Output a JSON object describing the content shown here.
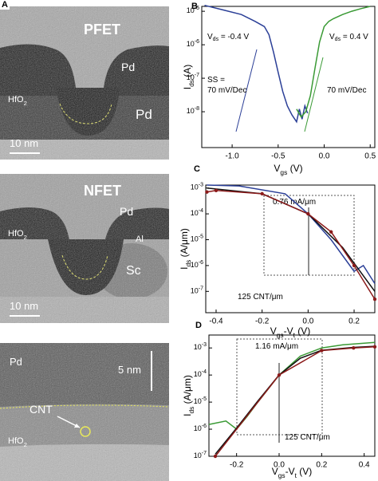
{
  "figure_label": "A",
  "images": [
    {
      "labels": [
        [
          "PFET"
        ],
        [
          "Pd"
        ],
        [
          "Pd"
        ],
        [
          "HfO",
          "2"
        ],
        [
          "10 nm"
        ]
      ]
    },
    {
      "labels": [
        [
          "NFET"
        ],
        [
          "Pd"
        ],
        [
          "HfO",
          "2"
        ],
        [
          "Al"
        ],
        [
          "Sc"
        ],
        [
          "10 nm"
        ]
      ]
    },
    {
      "labels": [
        [
          "Pd"
        ],
        [
          "5 nm"
        ],
        [
          "CNT"
        ],
        [
          "HfO",
          "2"
        ]
      ]
    }
  ],
  "chart_data": [
    {
      "type": "line",
      "panel": "B",
      "log_y": true,
      "xlabel": [
        "V",
        "gs",
        " (V)"
      ],
      "ylabel": [
        "I",
        "ds",
        " (A)"
      ],
      "xlim": [
        -1.33,
        0.55
      ],
      "ylim": [
        8.5e-10,
        1.4e-05
      ],
      "xticks": [
        {
          "value": -1,
          "label": "-1.0"
        },
        -0.5,
        {
          "value": 0,
          "label": "0.0"
        },
        0.5
      ],
      "yticks": [
        {
          "value": 1e-08,
          "label": "10-8"
        },
        {
          "value": 1e-07,
          "label": "10-7"
        },
        {
          "value": 1e-06,
          "label": "10-6"
        },
        {
          "value": 1e-05,
          "label": "10-5"
        }
      ],
      "annotations": [
        [
          "V",
          "ds",
          " = -0.4 V"
        ],
        [
          "V",
          "ds",
          " = 0.4 V"
        ],
        [
          "SS ="
        ],
        [
          "70 mV/Dec"
        ],
        [
          "70 mV/Dec"
        ]
      ],
      "series": [
        {
          "color": "#2b3f97",
          "x": [
            -1.3,
            -1.1,
            -0.9,
            -0.75,
            -0.65,
            -0.6,
            -0.55,
            -0.5,
            -0.45,
            -0.4,
            -0.35,
            -0.3,
            -0.27,
            -0.24,
            -0.21,
            -0.18
          ],
          "values": [
            1.5e-05,
            1.1e-05,
            8e-06,
            5e-06,
            3.5e-06,
            2e-06,
            6e-07,
            1.5e-07,
            4e-08,
            1.5e-08,
            8e-09,
            5e-09,
            1.2e-08,
            6e-09,
            1.5e-08,
            9e-09
          ]
        },
        {
          "color": "#3a9a35",
          "x": [
            -0.3,
            -0.25,
            -0.2,
            -0.15,
            -0.1,
            -0.05,
            0.0,
            0.05,
            0.1,
            0.2,
            0.3,
            0.4,
            0.5
          ],
          "values": [
            1.2e-08,
            7e-09,
            1e-08,
            3e-08,
            2e-07,
            1.2e-06,
            3.5e-06,
            5e-06,
            6e-06,
            8e-06,
            1e-05,
            1.2e-05,
            1.4e-05
          ]
        }
      ]
    },
    {
      "type": "line",
      "panel": "C",
      "log_y": true,
      "xlabel": [
        "V",
        "gs",
        "-V",
        "t",
        " (V)"
      ],
      "ylabel": [
        "I",
        "ds",
        " (A/μm)"
      ],
      "xlim": [
        -0.445,
        0.29
      ],
      "ylim": [
        1.5e-08,
        0.0013
      ],
      "xticks": [
        -0.4,
        -0.2,
        {
          "value": 0,
          "label": "0.0"
        },
        0.2
      ],
      "yticks": [
        {
          "value": 1e-07,
          "label": "10-7"
        },
        {
          "value": 1e-06,
          "label": "10-6"
        },
        {
          "value": 1e-05,
          "label": "10-5"
        },
        {
          "value": 0.0001,
          "label": "10-4"
        },
        {
          "value": 0.001,
          "label": "10-3"
        }
      ],
      "annotations": [
        [
          "0.76 mA/μm"
        ],
        [
          "125 CNT/μm"
        ]
      ],
      "series": [
        {
          "color": "#2b3f97",
          "x": [
            -0.44,
            -0.3,
            -0.1,
            0.0,
            0.1,
            0.2,
            0.24,
            0.29
          ],
          "values": [
            0.0013,
            0.0012,
            0.0006,
            0.0001,
            1e-05,
            6e-07,
            1e-06,
            2e-07
          ]
        },
        {
          "color": "#111111",
          "x": [
            -0.44,
            -0.2,
            0.0,
            0.15,
            0.29
          ],
          "values": [
            0.001,
            0.0006,
            0.0001,
            5e-06,
            1e-07
          ]
        },
        {
          "color": "#8b1a1a",
          "markers": true,
          "x": [
            -0.44,
            -0.4,
            -0.2,
            0.0,
            0.1,
            0.2,
            0.29
          ],
          "values": [
            0.0007,
            0.0008,
            0.0006,
            0.0001,
            2e-05,
            1e-06,
            5e-08
          ]
        }
      ]
    },
    {
      "type": "line",
      "panel": "D",
      "log_y": true,
      "xlabel": [
        "V",
        "gs",
        "-V",
        "t",
        " (V)"
      ],
      "ylabel": [
        "I",
        "ds",
        " (A/μm)"
      ],
      "xlim": [
        -0.33,
        0.45
      ],
      "ylim": [
        1e-07,
        0.003
      ],
      "xticks": [
        -0.2,
        {
          "value": 0,
          "label": "0.0"
        },
        0.2,
        0.4
      ],
      "yticks": [
        {
          "value": 1e-07,
          "label": "10-7"
        },
        {
          "value": 1e-06,
          "label": "10-6"
        },
        {
          "value": 1e-05,
          "label": "10-5"
        },
        {
          "value": 0.0001,
          "label": "10-4"
        },
        {
          "value": 0.001,
          "label": "10-3"
        }
      ],
      "annotations": [
        [
          "1.16 mA/μm"
        ],
        [
          "125 CNT/μm"
        ]
      ],
      "series": [
        {
          "color": "#3a9a35",
          "x": [
            -0.33,
            -0.25,
            -0.2,
            -0.15,
            -0.1,
            0.0,
            0.1,
            0.2,
            0.3,
            0.45
          ],
          "values": [
            1.5e-06,
            2e-06,
            1e-06,
            3e-06,
            1e-05,
            0.0001,
            0.0005,
            0.001,
            0.0013,
            0.0016
          ]
        },
        {
          "color": "#111111",
          "x": [
            -0.3,
            -0.2,
            -0.1,
            0.0,
            0.1,
            0.2,
            0.35,
            0.45
          ],
          "values": [
            1.2e-07,
            1.1e-06,
            1.1e-05,
            0.0001,
            0.00042,
            0.00082,
            0.00105,
            0.00115
          ]
        },
        {
          "color": "#8b1a1a",
          "markers": true,
          "x": [
            -0.3,
            0.0,
            0.2,
            0.35,
            0.45
          ],
          "values": [
            1e-07,
            0.0001,
            0.0008,
            0.001,
            0.0011
          ]
        }
      ]
    }
  ]
}
